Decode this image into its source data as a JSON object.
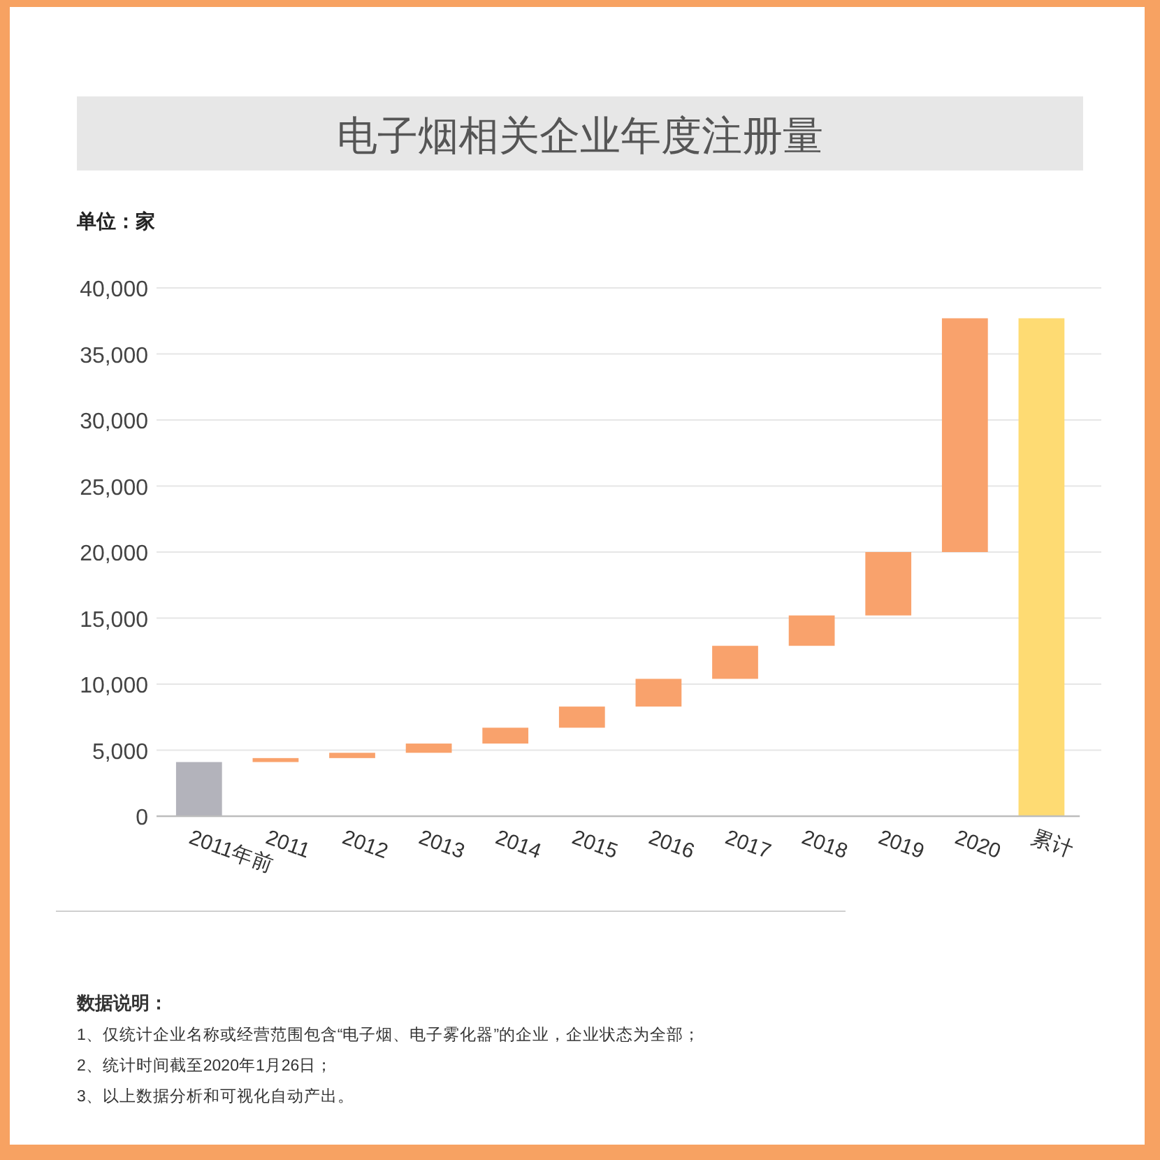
{
  "chart_data": {
    "type": "bar",
    "title": "电子烟相关企业年度注册量",
    "ylabel": "单位：家",
    "categories": [
      "2011年前",
      "2011",
      "2012",
      "2013",
      "2014",
      "2015",
      "2016",
      "2017",
      "2018",
      "2019",
      "2020",
      "累计"
    ],
    "values": [
      4100,
      300,
      400,
      700,
      1200,
      1600,
      2100,
      2500,
      2300,
      4800,
      17700,
      37700
    ],
    "base": [
      0,
      4100,
      4400,
      4800,
      5500,
      6700,
      8300,
      10400,
      12900,
      15200,
      20000,
      0
    ],
    "colors": [
      "#b3b3bb",
      "#f9a26c",
      "#f9a26c",
      "#f9a26c",
      "#f9a26c",
      "#f9a26c",
      "#f9a26c",
      "#f9a26c",
      "#f9a26c",
      "#f9a26c",
      "#f9a26c",
      "#fedb73"
    ],
    "ylim": [
      0,
      40000
    ],
    "yticks": [
      0,
      {
        "value": 5000,
        "label": "5,000"
      },
      {
        "value": 10000,
        "label": "10,000"
      },
      {
        "value": 15000,
        "label": "15,000"
      },
      {
        "value": 20000,
        "label": "20,000"
      },
      {
        "value": 25000,
        "label": "25,000"
      },
      {
        "value": 30000,
        "label": "30,000"
      },
      {
        "value": 35000,
        "label": "35,000"
      },
      {
        "value": 40000,
        "label": "40,000"
      }
    ],
    "grid": "y",
    "annotations": [
      "数据说明：",
      "1、仅统计企业名称或经营范围包含“电子烟、电子雾化器”的企业，企业状态为全部；",
      "2、统计时间截至2020年1月26日；",
      "3、以上数据分析和可视化自动产出。"
    ]
  }
}
